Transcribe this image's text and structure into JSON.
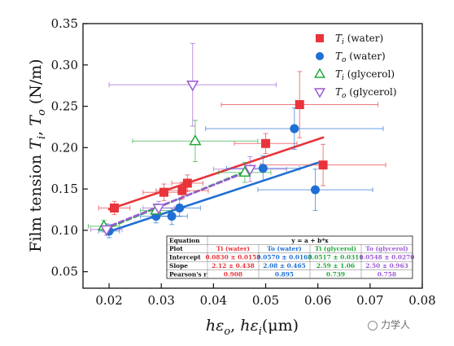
{
  "chart_data": {
    "type": "scatter",
    "title": "",
    "xlabel": "hε_o, hε_i (μm)",
    "ylabel": "Film tension T_i, T_o (N/m)",
    "xlim": [
      0.015,
      0.08
    ],
    "ylim": [
      0.03,
      0.35
    ],
    "xticks": [
      "0.02",
      "0.03",
      "0.04",
      "0.05",
      "0.06",
      "0.07",
      "0.08"
    ],
    "yticks": [
      "0.05",
      "0.10",
      "0.15",
      "0.20",
      "0.25",
      "0.30",
      "0.35"
    ],
    "legend_position": "top-right",
    "grid": false,
    "series": [
      {
        "name": "Ti (water)",
        "marker": "filled-square",
        "color": "#e8343a",
        "points": [
          {
            "x": 0.021,
            "y": 0.127,
            "xerr": 0.003,
            "yerr": 0.008
          },
          {
            "x": 0.0305,
            "y": 0.146,
            "xerr": 0.004,
            "yerr": 0.01
          },
          {
            "x": 0.034,
            "y": 0.148,
            "xerr": 0.005,
            "yerr": 0.01
          },
          {
            "x": 0.035,
            "y": 0.157,
            "xerr": 0.003,
            "yerr": 0.01
          },
          {
            "x": 0.05,
            "y": 0.205,
            "xerr": 0.006,
            "yerr": 0.012
          },
          {
            "x": 0.0565,
            "y": 0.252,
            "xerr": 0.015,
            "yerr": 0.04
          },
          {
            "x": 0.061,
            "y": 0.179,
            "xerr": 0.012,
            "yerr": 0.025
          }
        ]
      },
      {
        "name": "To (water)",
        "marker": "filled-circle",
        "color": "#1f6fd4",
        "points": [
          {
            "x": 0.02,
            "y": 0.099,
            "xerr": 0.002,
            "yerr": 0.008
          },
          {
            "x": 0.029,
            "y": 0.117,
            "xerr": 0.003,
            "yerr": 0.008
          },
          {
            "x": 0.032,
            "y": 0.117,
            "xerr": 0.003,
            "yerr": 0.01
          },
          {
            "x": 0.0335,
            "y": 0.127,
            "xerr": 0.004,
            "yerr": 0.01
          },
          {
            "x": 0.0495,
            "y": 0.175,
            "xerr": 0.007,
            "yerr": 0.015
          },
          {
            "x": 0.0555,
            "y": 0.223,
            "xerr": 0.017,
            "yerr": 0.025
          },
          {
            "x": 0.0595,
            "y": 0.149,
            "xerr": 0.011,
            "yerr": 0.025
          }
        ]
      },
      {
        "name": "Ti (glycerol)",
        "marker": "open-triangle-up",
        "color": "#22a83a",
        "points": [
          {
            "x": 0.019,
            "y": 0.105,
            "xerr": 0.003,
            "yerr": 0.007
          },
          {
            "x": 0.029,
            "y": 0.124,
            "xerr": 0.003,
            "yerr": 0.008
          },
          {
            "x": 0.0365,
            "y": 0.208,
            "xerr": 0.012,
            "yerr": 0.025
          },
          {
            "x": 0.046,
            "y": 0.17,
            "xerr": 0.005,
            "yerr": 0.012
          }
        ]
      },
      {
        "name": "To (glycerol)",
        "marker": "open-triangle-down",
        "color": "#9b59d4",
        "points": [
          {
            "x": 0.0195,
            "y": 0.101,
            "xerr": 0.003,
            "yerr": 0.007
          },
          {
            "x": 0.0295,
            "y": 0.127,
            "xerr": 0.003,
            "yerr": 0.008
          },
          {
            "x": 0.036,
            "y": 0.276,
            "xerr": 0.016,
            "yerr": 0.05
          },
          {
            "x": 0.047,
            "y": 0.174,
            "xerr": 0.007,
            "yerr": 0.015
          }
        ]
      }
    ],
    "fits": [
      {
        "series": "Ti (water)",
        "intercept": 0.083,
        "slope": 2.12,
        "x_range": [
          0.02,
          0.061
        ],
        "style": "solid"
      },
      {
        "series": "To (water)",
        "intercept": 0.057,
        "slope": 2.08,
        "x_range": [
          0.02,
          0.06
        ],
        "style": "solid"
      },
      {
        "series": "Ti (glycerol)",
        "intercept": 0.0517,
        "slope": 2.59,
        "x_range": [
          0.019,
          0.047
        ],
        "style": "dashed"
      },
      {
        "series": "To (glycerol)",
        "intercept": 0.0548,
        "slope": 2.5,
        "x_range": [
          0.019,
          0.047
        ],
        "style": "dashed"
      }
    ],
    "legend": {
      "entries": [
        {
          "symbol": "T",
          "sub": "i",
          "label": " (water)",
          "marker": "filled-square",
          "color": "#e8343a"
        },
        {
          "symbol": "T",
          "sub": "o",
          "label": " (water)",
          "marker": "filled-circle",
          "color": "#1f6fd4"
        },
        {
          "symbol": "T",
          "sub": "i",
          "label": " (glycerol)",
          "marker": "open-triangle-up",
          "color": "#22a83a"
        },
        {
          "symbol": "T",
          "sub": "o",
          "label": " (glycerol)",
          "marker": "open-triangle-down",
          "color": "#9b59d4"
        }
      ]
    },
    "fit_table": {
      "rows": [
        {
          "label": "Equation",
          "cells": [
            "y = a + b*x"
          ]
        },
        {
          "label": "Plot",
          "cells": [
            "Ti (water)",
            "To (water)",
            "Ti (glycerol)",
            "To (glycerol)"
          ]
        },
        {
          "label": "Intercept",
          "cells": [
            "0.0830 ± 0.0153",
            "0.0570 ± 0.0165",
            "0.0517 ± 0.0311",
            "0.0548 ± 0.0270"
          ]
        },
        {
          "label": "Slope",
          "cells": [
            "2.12 ± 0.438",
            "2.08 ± 0.465",
            "2.59 ± 1.06",
            "2.50 ± 0.963"
          ]
        },
        {
          "label": "Pearson's r",
          "cells": [
            "0.908",
            "0.895",
            "0.739",
            "0.758"
          ]
        }
      ],
      "column_colors": [
        "#e8343a",
        "#1f6fd4",
        "#22a83a",
        "#9b59d4"
      ]
    }
  },
  "axis_titles": {
    "y_prefix": "Film tension ",
    "y_t1": "T",
    "y_s1": "i",
    "y_sep": ", ",
    "y_t2": "T",
    "y_s2": "o",
    "y_unit": " (N/m)",
    "x_h1": "h",
    "x_e1": "ε",
    "x_s1": "o",
    "x_sep": ", ",
    "x_h2": "h",
    "x_e2": "ε",
    "x_s2": "i",
    "x_unit": "(μm)"
  },
  "watermark": {
    "text": "力学人",
    "icon": "wechat-logo-icon"
  }
}
